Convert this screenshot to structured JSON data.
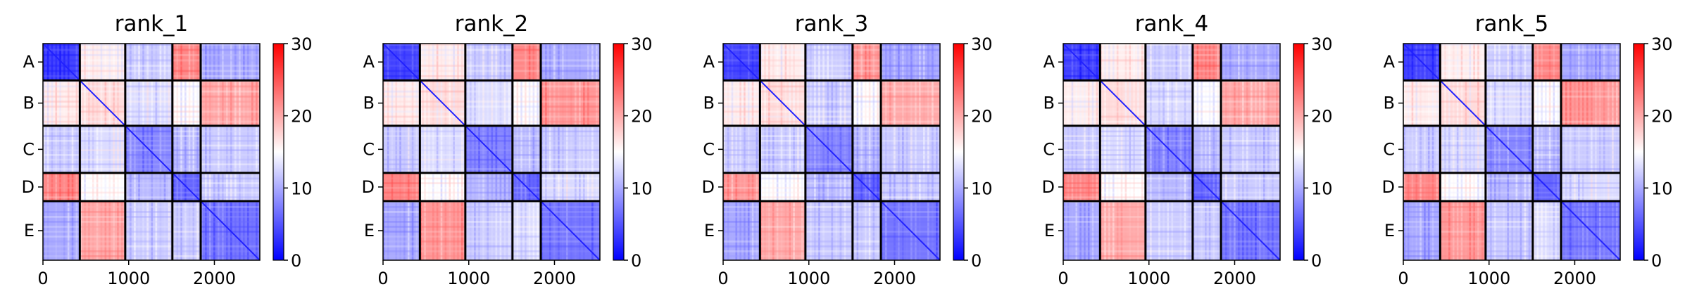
{
  "chart_data": [
    {
      "type": "heatmap",
      "title": "rank_1",
      "x_ticks": [
        0,
        1000,
        2000
      ],
      "x_range": [
        0,
        2530
      ],
      "y_labels": [
        "A",
        "B",
        "C",
        "D",
        "E"
      ],
      "colorbar": {
        "min": 0,
        "max": 30,
        "ticks": [
          0,
          10,
          20,
          30
        ],
        "colormap": "bwr"
      },
      "blocks": [
        [
          4,
          16,
          12,
          22,
          10
        ],
        [
          16,
          17,
          13,
          15,
          20
        ],
        [
          12,
          13,
          8,
          11,
          12
        ],
        [
          22,
          15,
          11,
          6,
          12
        ],
        [
          10,
          20,
          12,
          12,
          7
        ]
      ],
      "diagonal_value": 2
    },
    {
      "type": "heatmap",
      "title": "rank_2",
      "x_ticks": [
        0,
        1000,
        2000
      ],
      "x_range": [
        0,
        2530
      ],
      "y_labels": [
        "A",
        "B",
        "C",
        "D",
        "E"
      ],
      "colorbar": {
        "min": 0,
        "max": 30,
        "ticks": [
          0,
          10,
          20,
          30
        ],
        "colormap": "bwr"
      },
      "blocks": [
        [
          4,
          16,
          12,
          22,
          10
        ],
        [
          16,
          17,
          13,
          15,
          21
        ],
        [
          12,
          13,
          8,
          11,
          12
        ],
        [
          22,
          15,
          11,
          6,
          13
        ],
        [
          10,
          21,
          12,
          13,
          7
        ]
      ],
      "diagonal_value": 2
    },
    {
      "type": "heatmap",
      "title": "rank_3",
      "x_ticks": [
        0,
        1000,
        2000
      ],
      "x_range": [
        0,
        2530
      ],
      "y_labels": [
        "A",
        "B",
        "C",
        "D",
        "E"
      ],
      "colorbar": {
        "min": 0,
        "max": 30,
        "ticks": [
          0,
          10,
          20,
          30
        ],
        "colormap": "bwr"
      },
      "blocks": [
        [
          4,
          16,
          12,
          21,
          10
        ],
        [
          16,
          17,
          12,
          15,
          20
        ],
        [
          12,
          12,
          8,
          11,
          12
        ],
        [
          21,
          15,
          11,
          6,
          12
        ],
        [
          10,
          20,
          12,
          12,
          7
        ]
      ],
      "diagonal_value": 2
    },
    {
      "type": "heatmap",
      "title": "rank_4",
      "x_ticks": [
        0,
        1000,
        2000
      ],
      "x_range": [
        0,
        2530
      ],
      "y_labels": [
        "A",
        "B",
        "C",
        "D",
        "E"
      ],
      "colorbar": {
        "min": 0,
        "max": 30,
        "ticks": [
          0,
          10,
          20,
          30
        ],
        "colormap": "bwr"
      },
      "blocks": [
        [
          4,
          16,
          12,
          22,
          10
        ],
        [
          16,
          17,
          13,
          15,
          20
        ],
        [
          12,
          13,
          8,
          11,
          12
        ],
        [
          22,
          15,
          11,
          6,
          12
        ],
        [
          10,
          20,
          12,
          12,
          7
        ]
      ],
      "diagonal_value": 2
    },
    {
      "type": "heatmap",
      "title": "rank_5",
      "x_ticks": [
        0,
        1000,
        2000
      ],
      "x_range": [
        0,
        2530
      ],
      "y_labels": [
        "A",
        "B",
        "C",
        "D",
        "E"
      ],
      "colorbar": {
        "min": 0,
        "max": 30,
        "ticks": [
          0,
          10,
          20,
          30
        ],
        "colormap": "bwr"
      },
      "blocks": [
        [
          4,
          16,
          12,
          22,
          10
        ],
        [
          16,
          17,
          13,
          15,
          21
        ],
        [
          12,
          13,
          8,
          11,
          12
        ],
        [
          22,
          15,
          11,
          6,
          13
        ],
        [
          10,
          21,
          12,
          13,
          7
        ]
      ],
      "diagonal_value": 2
    }
  ],
  "group_boundaries": [
    0,
    430,
    960,
    1510,
    1840,
    2530
  ],
  "colors": {
    "low": "#0000ff",
    "mid": "#ffffff",
    "high": "#ff0000",
    "separator": "#000000"
  }
}
